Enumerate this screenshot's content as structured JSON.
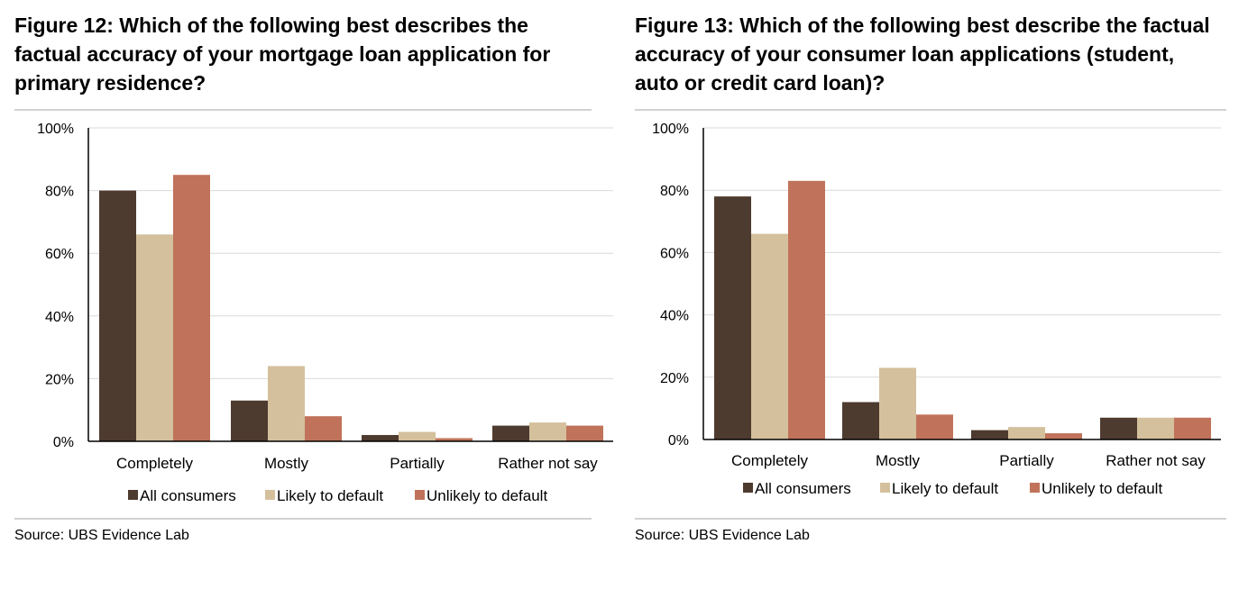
{
  "figures": [
    {
      "title": "Figure 12: Which of the following best describes the factual accuracy of your mortgage loan application for primary residence?",
      "source": "Source:  UBS Evidence Lab"
    },
    {
      "title": "Figure 13: Which of the following best describe the factual accuracy of your consumer loan applications (student, auto or credit card loan)?",
      "source": "Source:  UBS Evidence Lab"
    }
  ],
  "colors": {
    "all_consumers": "#4e3b2f",
    "likely_to_default": "#d4c09c",
    "unlikely_to_default": "#c0735a",
    "grid": "#d9d9d9",
    "axis": "#000000"
  },
  "chart_data": [
    {
      "type": "bar",
      "title": "",
      "categories": [
        "Completely",
        "Mostly",
        "Partially",
        "Rather not say"
      ],
      "series": [
        {
          "name": "All consumers",
          "values": [
            80,
            13,
            2,
            5
          ]
        },
        {
          "name": "Likely to default",
          "values": [
            66,
            24,
            3,
            6
          ]
        },
        {
          "name": "Unlikely to default",
          "values": [
            85,
            8,
            1,
            5
          ]
        }
      ],
      "yticks": [
        "0%",
        "20%",
        "40%",
        "60%",
        "80%",
        "100%"
      ],
      "ylim": [
        0,
        100
      ],
      "grid": true,
      "legend": "bottom"
    },
    {
      "type": "bar",
      "title": "",
      "categories": [
        "Completely",
        "Mostly",
        "Partially",
        "Rather not say"
      ],
      "series": [
        {
          "name": "All consumers",
          "values": [
            78,
            12,
            3,
            7
          ]
        },
        {
          "name": "Likely to default",
          "values": [
            66,
            23,
            4,
            7
          ]
        },
        {
          "name": "Unlikely to default",
          "values": [
            83,
            8,
            2,
            7
          ]
        }
      ],
      "yticks": [
        "0%",
        "20%",
        "40%",
        "60%",
        "80%",
        "100%"
      ],
      "ylim": [
        0,
        100
      ],
      "grid": true,
      "legend": "bottom"
    }
  ]
}
